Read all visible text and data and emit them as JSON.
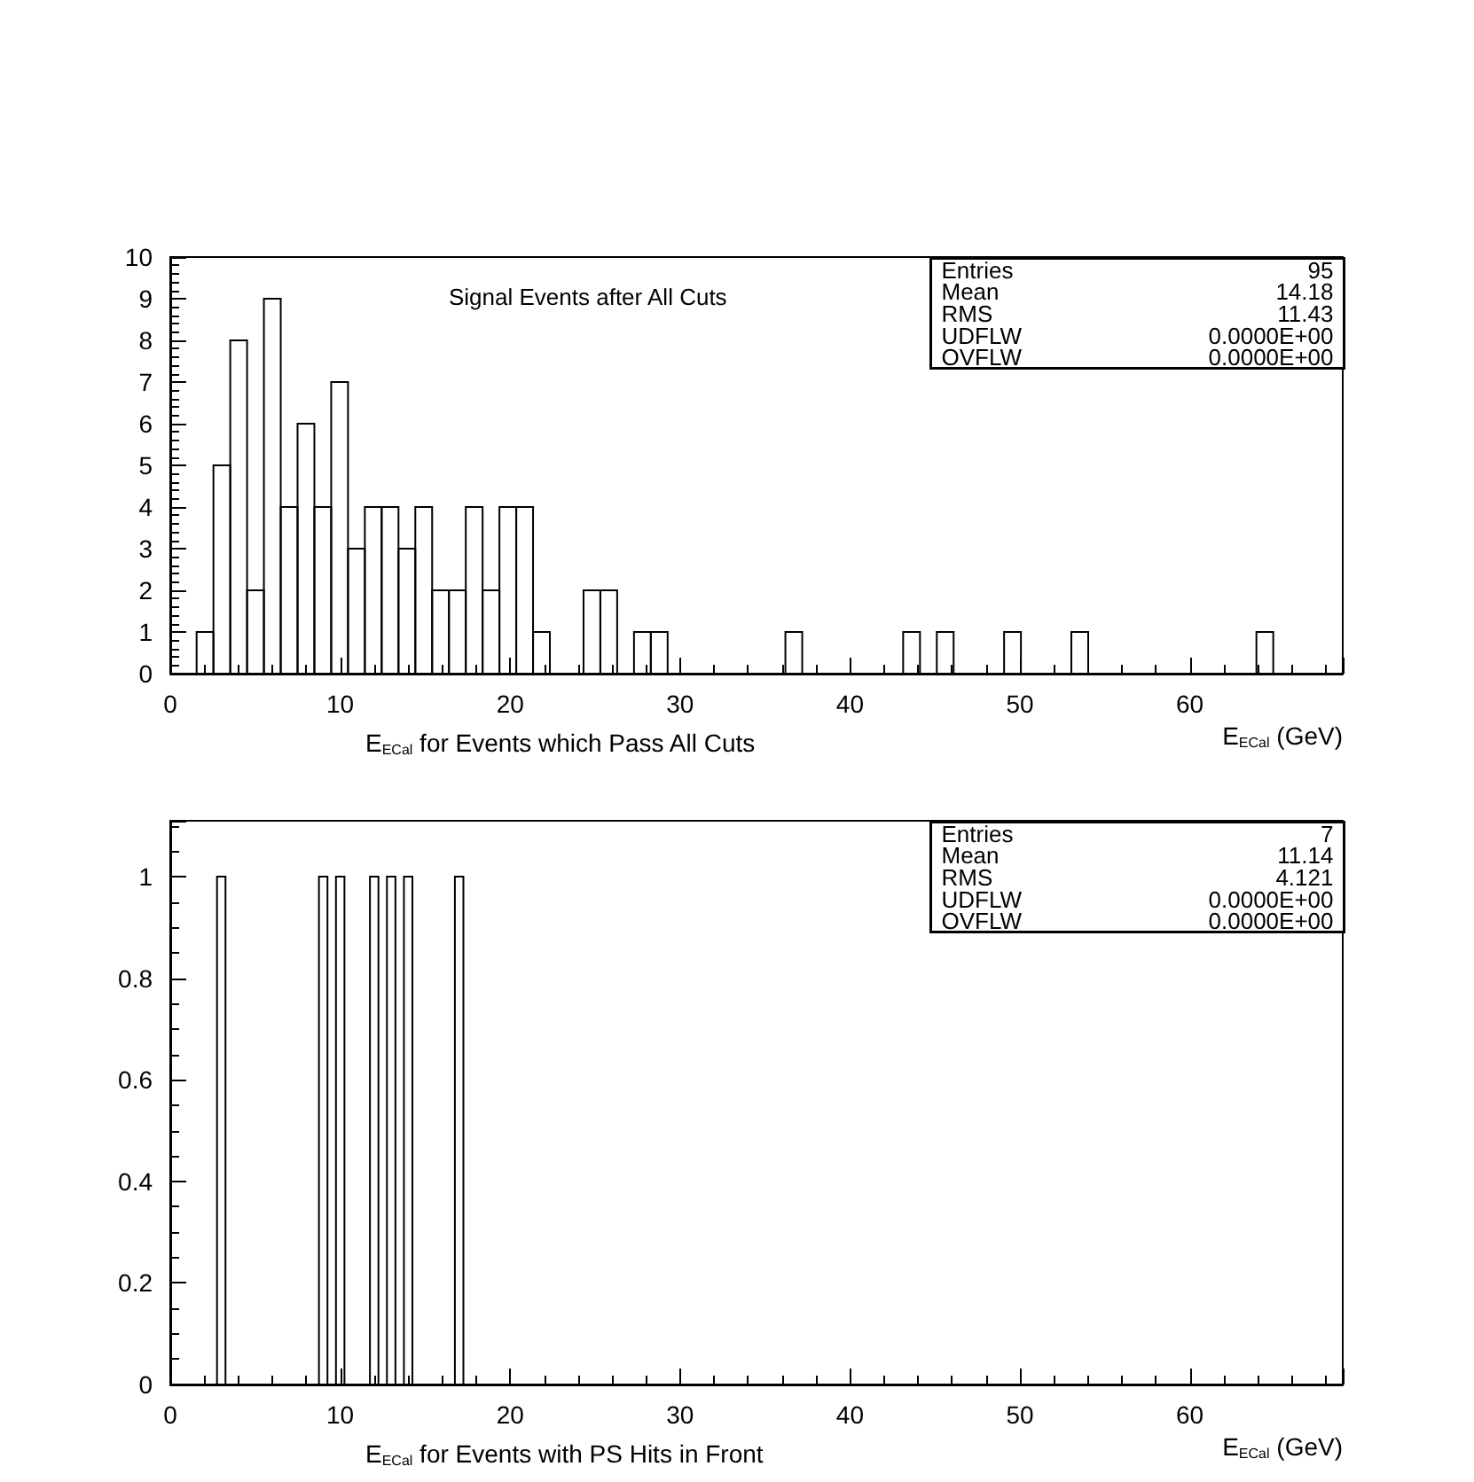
{
  "chart_data": [
    {
      "type": "histogram",
      "title": "Signal Events after All Cuts",
      "subtitle": "E$_{ECal}$ for Events which Pass All Cuts",
      "xlabel": "E$_{ECal}$ (GeV)",
      "bins": [
        1.55,
        2.54,
        3.53,
        4.52,
        5.51,
        6.5,
        7.49,
        8.48,
        9.47,
        10.46,
        11.45,
        12.44,
        13.43,
        14.42,
        15.41,
        16.4,
        17.39,
        18.38,
        19.37,
        20.36,
        21.35,
        22.34,
        23.33,
        24.32,
        25.31,
        26.3,
        27.29,
        28.28,
        29.27,
        30.26,
        31.25,
        32.24,
        33.23,
        34.22,
        35.21,
        36.2,
        37.19,
        38.18,
        39.17,
        40.16,
        41.15,
        42.14,
        43.13,
        44.12,
        45.11,
        46.1,
        47.09,
        48.08,
        49.07,
        50.06,
        51.05,
        52.04,
        53.03,
        54.02,
        55.01,
        56,
        56.99,
        57.98,
        58.97,
        59.96,
        60.95,
        61.94,
        62.93,
        63.92,
        64.91
      ],
      "values": [
        1,
        5,
        8,
        2,
        9,
        4,
        6,
        4,
        7,
        3,
        4,
        4,
        3,
        4,
        2,
        2,
        4,
        2,
        4,
        4,
        1,
        0,
        0,
        2,
        2,
        0,
        1,
        1,
        0,
        0,
        0,
        0,
        0,
        0,
        0,
        1,
        0,
        0,
        0,
        0,
        0,
        0,
        1,
        0,
        1,
        0,
        0,
        0,
        1,
        0,
        0,
        0,
        1,
        0,
        0,
        0,
        0,
        0,
        0,
        0,
        0,
        0,
        0,
        1
      ],
      "color": "#000000",
      "xlim": [
        0,
        69
      ],
      "xticks": [
        0,
        10,
        20,
        30,
        40,
        50,
        60
      ],
      "ylim": [
        0,
        10
      ],
      "yticks": [
        0,
        1,
        2,
        3,
        4,
        5,
        6,
        7,
        8,
        9,
        10
      ],
      "grid": false,
      "annotations": [
        "Entries",
        "95",
        "Mean",
        "14.18",
        "RMS",
        "11.43",
        "UDFLW",
        "0.0000E+00",
        "OVFLW",
        "0.0000E+00"
      ]
    },
    {
      "type": "histogram",
      "subtitle": "E$_{ECal}$ for Events with PS Hits in Front",
      "xlabel": "E$_{ECal}$ (GeV)",
      "bins": [
        2.75,
        3.25,
        3.75,
        4.25,
        4.75,
        5.25,
        5.75,
        6.25,
        6.75,
        7.25,
        7.75,
        8.25,
        8.75,
        9.25,
        9.75,
        10.25,
        10.75,
        11.25,
        11.75,
        12.25,
        12.75,
        13.25,
        13.75,
        14.25,
        14.75,
        15.25,
        15.75,
        16.25,
        16.75,
        17.25
      ],
      "values": [
        1,
        0,
        0,
        0,
        0,
        0,
        0,
        0,
        0,
        0,
        0,
        0,
        1,
        0,
        1,
        0,
        0,
        0,
        1,
        0,
        1,
        0,
        1,
        0,
        0,
        0,
        0,
        0,
        1
      ],
      "color": "#000000",
      "xlim": [
        0,
        69
      ],
      "xticks": [
        0,
        10,
        20,
        30,
        40,
        50,
        60
      ],
      "ylim": [
        0,
        1.11
      ],
      "yticks": [
        0,
        0.2,
        0.4,
        0.6,
        0.8,
        1
      ],
      "grid": false,
      "annotations": [
        "Entries",
        "7",
        "Mean",
        "11.14",
        "RMS",
        "4.121",
        "UDFLW",
        "0.0000E+00",
        "OVFLW",
        "0.0000E+00"
      ]
    }
  ]
}
